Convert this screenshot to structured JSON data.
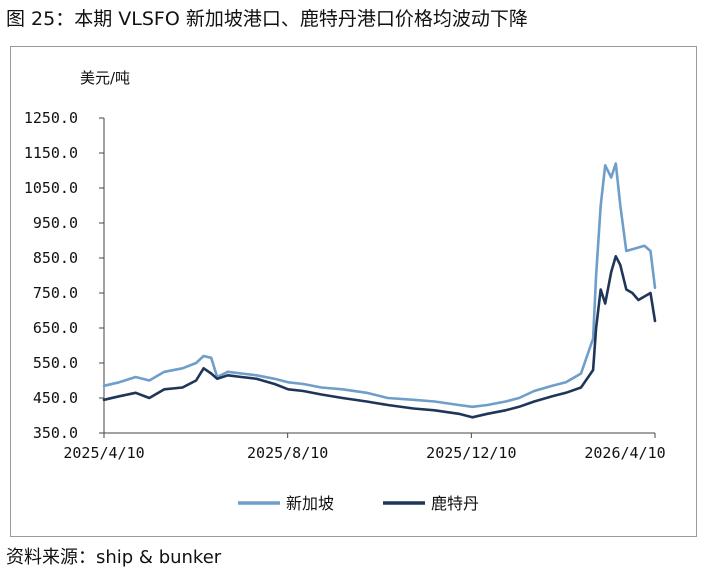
{
  "title": "图 25：本期 VLSFO 新加坡港口、鹿特丹港口价格均波动下降",
  "source": "资料来源：ship & bunker",
  "chart_data": {
    "type": "line",
    "unit": "美元/吨",
    "ylim": [
      350,
      1250
    ],
    "y_ticks": [
      "1250.0",
      "1150.0",
      "1050.0",
      "950.0",
      "850.0",
      "750.0",
      "650.0",
      "550.0",
      "450.0",
      "350.0"
    ],
    "x_ticks": [
      "2025/4/10",
      "2025/8/10",
      "2025/12/10",
      "2026/4/10"
    ],
    "grid": false,
    "legend_position": "bottom",
    "colors": {
      "新加坡": "#6e9ec9",
      "鹿特丹": "#1f3659"
    },
    "series": [
      {
        "name": "新加坡",
        "x": [
          "2025-04-10",
          "2025-04-20",
          "2025-05-01",
          "2025-05-10",
          "2025-05-20",
          "2025-06-01",
          "2025-06-10",
          "2025-06-15",
          "2025-06-20",
          "2025-06-24",
          "2025-07-01",
          "2025-07-10",
          "2025-07-20",
          "2025-08-01",
          "2025-08-10",
          "2025-08-20",
          "2025-09-01",
          "2025-09-15",
          "2025-10-01",
          "2025-10-15",
          "2025-11-01",
          "2025-11-15",
          "2025-12-01",
          "2025-12-10",
          "2025-12-20",
          "2026-01-01",
          "2026-01-10",
          "2026-01-20",
          "2026-02-01",
          "2026-02-10",
          "2026-02-20",
          "2026-02-28",
          "2026-03-02",
          "2026-03-05",
          "2026-03-08",
          "2026-03-12",
          "2026-03-15",
          "2026-03-18",
          "2026-03-22",
          "2026-03-26",
          "2026-03-30",
          "2026-04-03",
          "2026-04-07",
          "2026-04-10"
        ],
        "values": [
          485,
          495,
          510,
          500,
          525,
          535,
          550,
          570,
          565,
          510,
          525,
          520,
          515,
          505,
          495,
          490,
          480,
          475,
          465,
          450,
          445,
          440,
          430,
          425,
          430,
          440,
          450,
          470,
          485,
          495,
          520,
          620,
          800,
          1000,
          1115,
          1080,
          1120,
          1000,
          870,
          875,
          880,
          885,
          870,
          765
        ]
      },
      {
        "name": "鹿特丹",
        "x": [
          "2025-04-10",
          "2025-04-20",
          "2025-05-01",
          "2025-05-10",
          "2025-05-20",
          "2025-06-01",
          "2025-06-10",
          "2025-06-15",
          "2025-06-20",
          "2025-06-24",
          "2025-07-01",
          "2025-07-10",
          "2025-07-20",
          "2025-08-01",
          "2025-08-10",
          "2025-08-20",
          "2025-09-01",
          "2025-09-15",
          "2025-10-01",
          "2025-10-15",
          "2025-11-01",
          "2025-11-15",
          "2025-12-01",
          "2025-12-10",
          "2025-12-20",
          "2026-01-01",
          "2026-01-10",
          "2026-01-20",
          "2026-02-01",
          "2026-02-10",
          "2026-02-20",
          "2026-02-28",
          "2026-03-02",
          "2026-03-05",
          "2026-03-08",
          "2026-03-12",
          "2026-03-15",
          "2026-03-18",
          "2026-03-22",
          "2026-03-26",
          "2026-03-30",
          "2026-04-03",
          "2026-04-07",
          "2026-04-10"
        ],
        "values": [
          445,
          455,
          465,
          450,
          475,
          480,
          500,
          535,
          520,
          505,
          515,
          510,
          505,
          490,
          475,
          470,
          460,
          450,
          440,
          430,
          420,
          415,
          405,
          395,
          405,
          415,
          425,
          440,
          455,
          465,
          480,
          530,
          650,
          760,
          720,
          810,
          855,
          830,
          760,
          750,
          730,
          740,
          750,
          670
        ]
      }
    ]
  }
}
